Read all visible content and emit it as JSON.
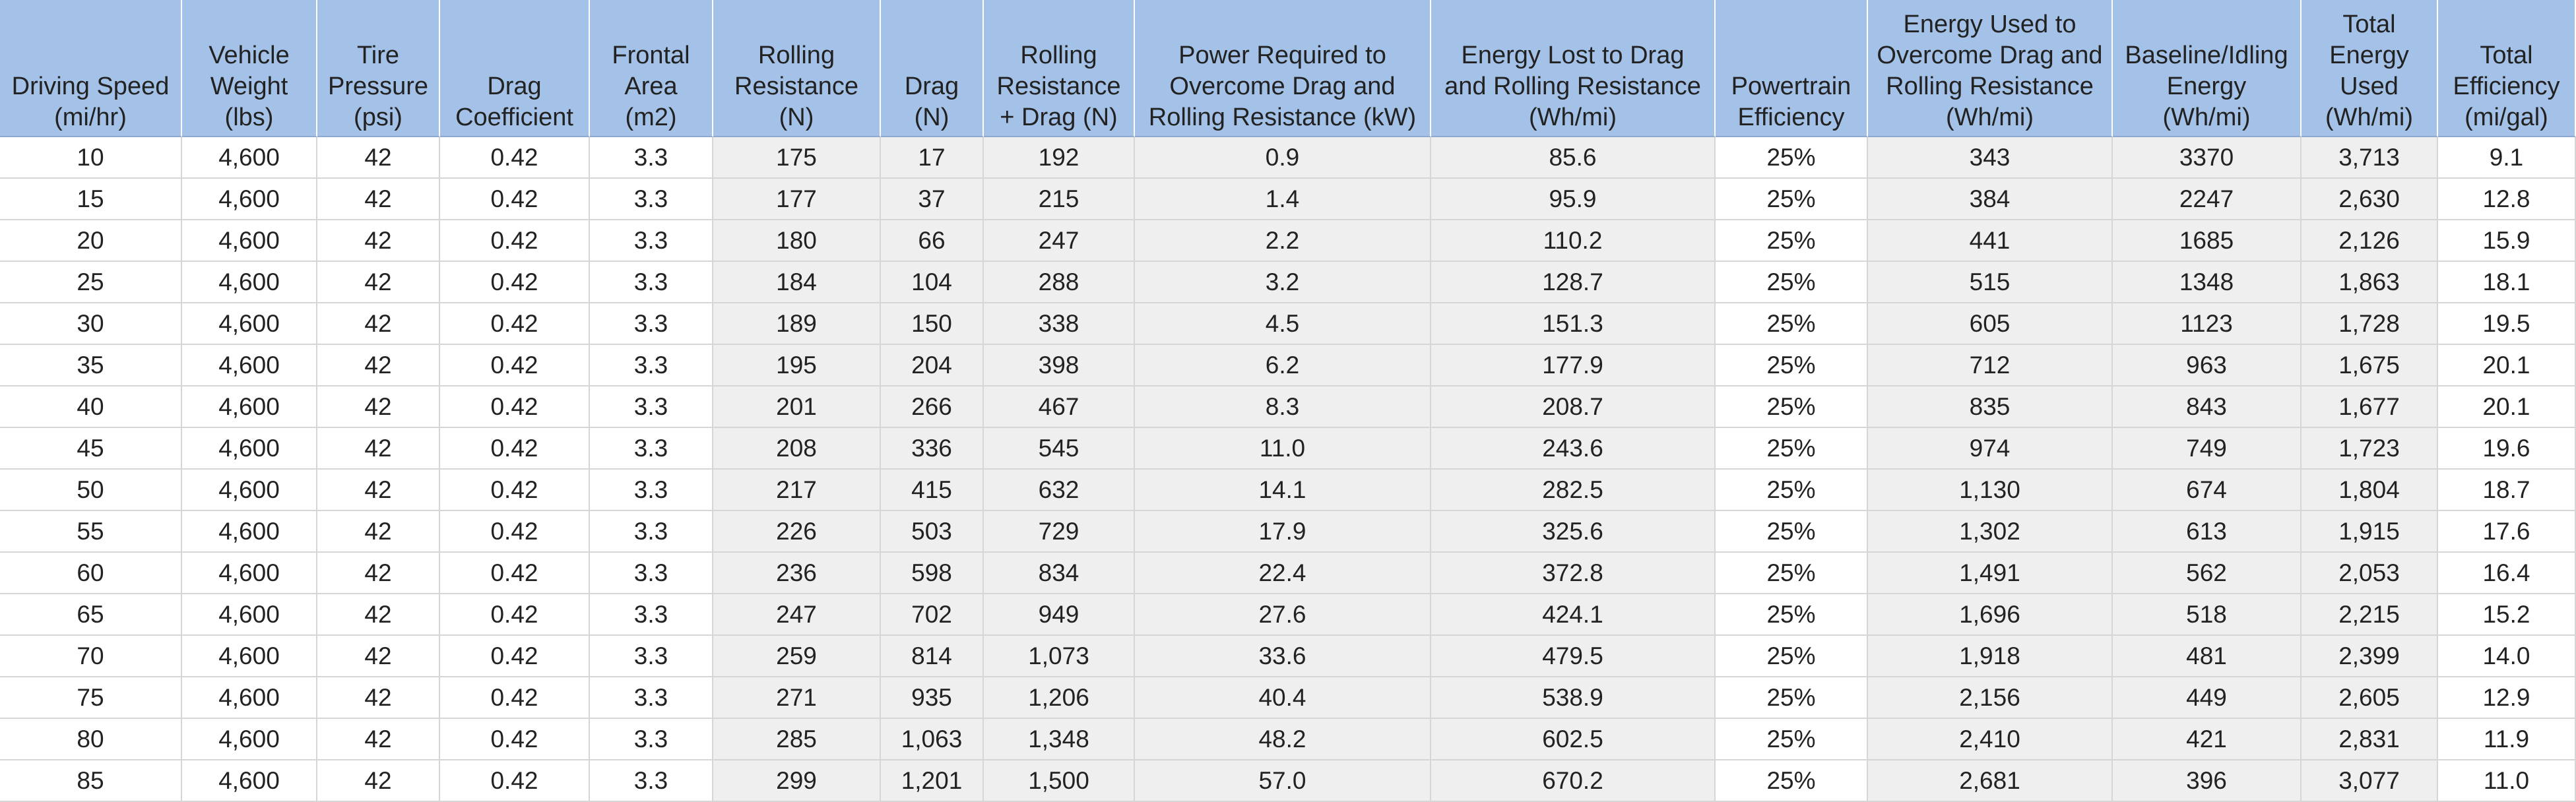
{
  "table": {
    "headers": [
      [
        "Driving Speed",
        "(mi/hr)"
      ],
      [
        "Vehicle",
        "Weight",
        "(lbs)"
      ],
      [
        "Tire",
        "Pressure",
        "(psi)"
      ],
      [
        "Drag",
        "Coefficient"
      ],
      [
        "Frontal",
        "Area",
        "(m2)"
      ],
      [
        "Rolling",
        "Resistance",
        "(N)"
      ],
      [
        "Drag",
        "(N)"
      ],
      [
        "Rolling",
        "Resistance",
        "+ Drag (N)"
      ],
      [
        "Power Required to",
        "Overcome Drag and",
        "Rolling Resistance (kW)"
      ],
      [
        "Energy Lost to Drag",
        "and Rolling Resistance",
        "(Wh/mi)"
      ],
      [
        "Powertrain",
        "Efficiency"
      ],
      [
        "Energy Used to",
        "Overcome Drag and",
        "Rolling Resistance",
        "(Wh/mi)"
      ],
      [
        "Baseline/Idling",
        "Energy",
        "(Wh/mi)"
      ],
      [
        "Total",
        "Energy",
        "Used",
        "(Wh/mi)"
      ],
      [
        "Total",
        "Efficiency",
        "(mi/gal)"
      ]
    ],
    "rows": [
      [
        "10",
        "4,600",
        "42",
        "0.42",
        "3.3",
        "175",
        "17",
        "192",
        "0.9",
        "85.6",
        "25%",
        "343",
        "3370",
        "3,713",
        "9.1"
      ],
      [
        "15",
        "4,600",
        "42",
        "0.42",
        "3.3",
        "177",
        "37",
        "215",
        "1.4",
        "95.9",
        "25%",
        "384",
        "2247",
        "2,630",
        "12.8"
      ],
      [
        "20",
        "4,600",
        "42",
        "0.42",
        "3.3",
        "180",
        "66",
        "247",
        "2.2",
        "110.2",
        "25%",
        "441",
        "1685",
        "2,126",
        "15.9"
      ],
      [
        "25",
        "4,600",
        "42",
        "0.42",
        "3.3",
        "184",
        "104",
        "288",
        "3.2",
        "128.7",
        "25%",
        "515",
        "1348",
        "1,863",
        "18.1"
      ],
      [
        "30",
        "4,600",
        "42",
        "0.42",
        "3.3",
        "189",
        "150",
        "338",
        "4.5",
        "151.3",
        "25%",
        "605",
        "1123",
        "1,728",
        "19.5"
      ],
      [
        "35",
        "4,600",
        "42",
        "0.42",
        "3.3",
        "195",
        "204",
        "398",
        "6.2",
        "177.9",
        "25%",
        "712",
        "963",
        "1,675",
        "20.1"
      ],
      [
        "40",
        "4,600",
        "42",
        "0.42",
        "3.3",
        "201",
        "266",
        "467",
        "8.3",
        "208.7",
        "25%",
        "835",
        "843",
        "1,677",
        "20.1"
      ],
      [
        "45",
        "4,600",
        "42",
        "0.42",
        "3.3",
        "208",
        "336",
        "545",
        "11.0",
        "243.6",
        "25%",
        "974",
        "749",
        "1,723",
        "19.6"
      ],
      [
        "50",
        "4,600",
        "42",
        "0.42",
        "3.3",
        "217",
        "415",
        "632",
        "14.1",
        "282.5",
        "25%",
        "1,130",
        "674",
        "1,804",
        "18.7"
      ],
      [
        "55",
        "4,600",
        "42",
        "0.42",
        "3.3",
        "226",
        "503",
        "729",
        "17.9",
        "325.6",
        "25%",
        "1,302",
        "613",
        "1,915",
        "17.6"
      ],
      [
        "60",
        "4,600",
        "42",
        "0.42",
        "3.3",
        "236",
        "598",
        "834",
        "22.4",
        "372.8",
        "25%",
        "1,491",
        "562",
        "2,053",
        "16.4"
      ],
      [
        "65",
        "4,600",
        "42",
        "0.42",
        "3.3",
        "247",
        "702",
        "949",
        "27.6",
        "424.1",
        "25%",
        "1,696",
        "518",
        "2,215",
        "15.2"
      ],
      [
        "70",
        "4,600",
        "42",
        "0.42",
        "3.3",
        "259",
        "814",
        "1,073",
        "33.6",
        "479.5",
        "25%",
        "1,918",
        "481",
        "2,399",
        "14.0"
      ],
      [
        "75",
        "4,600",
        "42",
        "0.42",
        "3.3",
        "271",
        "935",
        "1,206",
        "40.4",
        "538.9",
        "25%",
        "2,156",
        "449",
        "2,605",
        "12.9"
      ],
      [
        "80",
        "4,600",
        "42",
        "0.42",
        "3.3",
        "285",
        "1,063",
        "1,348",
        "48.2",
        "602.5",
        "25%",
        "2,410",
        "421",
        "2,831",
        "11.9"
      ],
      [
        "85",
        "4,600",
        "42",
        "0.42",
        "3.3",
        "299",
        "1,201",
        "1,500",
        "57.0",
        "670.2",
        "25%",
        "2,681",
        "396",
        "3,077",
        "11.0"
      ]
    ]
  }
}
